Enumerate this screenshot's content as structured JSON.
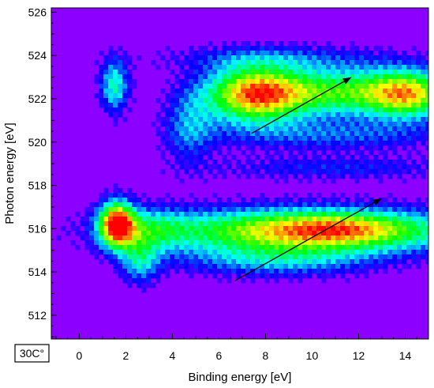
{
  "chart_data": {
    "type": "heatmap",
    "title": "",
    "xlabel": "Binding energy [eV]",
    "ylabel": "Photon energy [eV]",
    "xlim": [
      -1.2,
      15.0
    ],
    "ylim": [
      510.9,
      526.2
    ],
    "x_ticks": [
      "0",
      "2",
      "4",
      "6",
      "8",
      "10",
      "12",
      "14"
    ],
    "y_ticks": [
      "512",
      "514",
      "516",
      "518",
      "520",
      "522",
      "524",
      "526"
    ],
    "x_tick_values": [
      0,
      2,
      4,
      6,
      8,
      10,
      12,
      14
    ],
    "y_tick_values": [
      512,
      514,
      516,
      518,
      520,
      522,
      524,
      526
    ],
    "colormap": [
      "#8b00ff",
      "#0000ff",
      "#00ffff",
      "#00ff00",
      "#ffff00",
      "#ff0000"
    ],
    "background_color": "#8b00ff",
    "intensity_features": [
      {
        "x": 1.5,
        "y": 522.6,
        "sx": 0.45,
        "sy": 0.9,
        "amp": 0.45
      },
      {
        "x": 7.5,
        "y": 522.2,
        "sx": 1.5,
        "sy": 0.95,
        "amp": 0.82
      },
      {
        "x": 11.5,
        "y": 522.3,
        "sx": 2.6,
        "sy": 0.8,
        "amp": 0.6
      },
      {
        "x": 14.2,
        "y": 522.2,
        "sx": 1.2,
        "sy": 0.8,
        "amp": 0.55
      },
      {
        "x": 8.5,
        "y": 523.9,
        "sx": 3.5,
        "sy": 0.45,
        "amp": 0.2
      },
      {
        "x": 4.7,
        "y": 520.7,
        "sx": 0.8,
        "sy": 1.2,
        "amp": 0.28
      },
      {
        "x": 11.0,
        "y": 520.3,
        "sx": 3.5,
        "sy": 0.5,
        "amp": 0.25
      },
      {
        "x": 11.0,
        "y": 518.8,
        "sx": 4.0,
        "sy": 0.4,
        "amp": 0.2
      },
      {
        "x": 1.6,
        "y": 516.2,
        "sx": 0.55,
        "sy": 0.75,
        "amp": 0.97
      },
      {
        "x": 2.6,
        "y": 514.5,
        "sx": 0.6,
        "sy": 0.8,
        "amp": 0.35
      },
      {
        "x": 3.2,
        "y": 516.0,
        "sx": 1.0,
        "sy": 0.7,
        "amp": 0.25
      },
      {
        "x": 9.8,
        "y": 515.9,
        "sx": 4.8,
        "sy": 0.75,
        "amp": 0.8
      },
      {
        "x": 11.2,
        "y": 516.0,
        "sx": 2.0,
        "sy": 0.5,
        "amp": 0.22
      },
      {
        "x": 8.5,
        "y": 514.5,
        "sx": 3.0,
        "sy": 0.55,
        "amp": 0.3
      }
    ],
    "arrows": [
      {
        "from": [
          7.4,
          520.4
        ],
        "to": [
          11.7,
          523.0
        ]
      },
      {
        "from": [
          6.7,
          513.6
        ],
        "to": [
          13.0,
          517.4
        ]
      }
    ],
    "annotation": "30C°",
    "grid": false
  }
}
